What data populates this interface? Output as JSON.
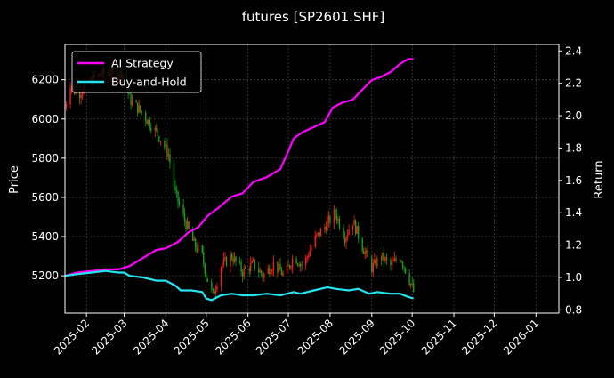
{
  "chart_data": {
    "type": "line",
    "title": "futures [SP2601.SHF]",
    "ylabel_left": "Price",
    "ylabel_right": "Return",
    "y_left_ticks": [
      5200,
      5400,
      5600,
      5800,
      6000,
      6200
    ],
    "y_left_lim": [
      5010,
      6380
    ],
    "y_right_ticks": [
      0.8,
      1.0,
      1.2,
      1.4,
      1.6,
      1.8,
      2.0,
      2.2,
      2.4
    ],
    "y_right_lim": [
      0.78,
      2.44
    ],
    "x_ticks": [
      "2025-02",
      "2025-03",
      "2025-04",
      "2025-05",
      "2025-06",
      "2025-07",
      "2025-08",
      "2025-09",
      "2025-10",
      "2025-11",
      "2025-12",
      "2026-01"
    ],
    "x_lim": [
      "2025-01-16",
      "2026-01-18"
    ],
    "grid": true,
    "legend_position": "top-left",
    "colors": {
      "ai_strategy": "#ff00ff",
      "buy_and_hold": "#22e5f0",
      "candle_up": "#ff1a1a",
      "candle_down": "#1a9e1a",
      "grid": "#555555"
    },
    "series": [
      {
        "name": "AI Strategy",
        "axis": "right",
        "points": [
          [
            "2025-01-16",
            1.01
          ],
          [
            "2025-01-25",
            1.03
          ],
          [
            "2025-02-05",
            1.04
          ],
          [
            "2025-02-15",
            1.05
          ],
          [
            "2025-02-25",
            1.05
          ],
          [
            "2025-03-05",
            1.07
          ],
          [
            "2025-03-15",
            1.12
          ],
          [
            "2025-03-25",
            1.17
          ],
          [
            "2025-04-01",
            1.18
          ],
          [
            "2025-04-10",
            1.22
          ],
          [
            "2025-04-18",
            1.28
          ],
          [
            "2025-04-25",
            1.31
          ],
          [
            "2025-05-02",
            1.38
          ],
          [
            "2025-05-10",
            1.43
          ],
          [
            "2025-05-20",
            1.5
          ],
          [
            "2025-05-28",
            1.52
          ],
          [
            "2025-06-05",
            1.59
          ],
          [
            "2025-06-15",
            1.62
          ],
          [
            "2025-06-25",
            1.67
          ],
          [
            "2025-07-01",
            1.78
          ],
          [
            "2025-07-05",
            1.86
          ],
          [
            "2025-07-12",
            1.9
          ],
          [
            "2025-07-20",
            1.93
          ],
          [
            "2025-07-28",
            1.96
          ],
          [
            "2025-08-03",
            2.05
          ],
          [
            "2025-08-10",
            2.08
          ],
          [
            "2025-08-18",
            2.1
          ],
          [
            "2025-08-25",
            2.16
          ],
          [
            "2025-09-01",
            2.22
          ],
          [
            "2025-09-08",
            2.24
          ],
          [
            "2025-09-15",
            2.27
          ],
          [
            "2025-09-22",
            2.32
          ],
          [
            "2025-09-28",
            2.35
          ],
          [
            "2025-10-02",
            2.35
          ]
        ]
      },
      {
        "name": "Buy-and-Hold",
        "axis": "right",
        "points": [
          [
            "2025-01-16",
            1.01
          ],
          [
            "2025-01-25",
            1.02
          ],
          [
            "2025-02-05",
            1.03
          ],
          [
            "2025-02-15",
            1.04
          ],
          [
            "2025-02-25",
            1.03
          ],
          [
            "2025-03-01",
            1.03
          ],
          [
            "2025-03-05",
            1.01
          ],
          [
            "2025-03-15",
            1.0
          ],
          [
            "2025-03-25",
            0.98
          ],
          [
            "2025-04-01",
            0.98
          ],
          [
            "2025-04-08",
            0.95
          ],
          [
            "2025-04-12",
            0.92
          ],
          [
            "2025-04-20",
            0.92
          ],
          [
            "2025-04-28",
            0.91
          ],
          [
            "2025-05-01",
            0.87
          ],
          [
            "2025-05-05",
            0.86
          ],
          [
            "2025-05-12",
            0.89
          ],
          [
            "2025-05-20",
            0.9
          ],
          [
            "2025-05-28",
            0.89
          ],
          [
            "2025-06-05",
            0.89
          ],
          [
            "2025-06-15",
            0.9
          ],
          [
            "2025-06-25",
            0.89
          ],
          [
            "2025-07-05",
            0.91
          ],
          [
            "2025-07-10",
            0.9
          ],
          [
            "2025-07-20",
            0.92
          ],
          [
            "2025-07-30",
            0.94
          ],
          [
            "2025-08-05",
            0.93
          ],
          [
            "2025-08-15",
            0.92
          ],
          [
            "2025-08-22",
            0.93
          ],
          [
            "2025-08-30",
            0.9
          ],
          [
            "2025-09-05",
            0.91
          ],
          [
            "2025-09-15",
            0.9
          ],
          [
            "2025-09-22",
            0.9
          ],
          [
            "2025-09-28",
            0.88
          ],
          [
            "2025-10-02",
            0.87
          ]
        ]
      },
      {
        "name": "SP2601.SHF price",
        "axis": "left",
        "kind": "candlestick",
        "close_points": [
          [
            "2025-01-16",
            6060
          ],
          [
            "2025-01-20",
            6180
          ],
          [
            "2025-01-25",
            6120
          ],
          [
            "2025-02-05",
            6200
          ],
          [
            "2025-02-15",
            6240
          ],
          [
            "2025-03-01",
            6230
          ],
          [
            "2025-03-05",
            6100
          ],
          [
            "2025-03-12",
            6050
          ],
          [
            "2025-03-20",
            5980
          ],
          [
            "2025-03-28",
            5900
          ],
          [
            "2025-04-03",
            5820
          ],
          [
            "2025-04-08",
            5620
          ],
          [
            "2025-04-14",
            5500
          ],
          [
            "2025-04-22",
            5360
          ],
          [
            "2025-04-28",
            5300
          ],
          [
            "2025-05-01",
            5200
          ],
          [
            "2025-05-06",
            5100
          ],
          [
            "2025-05-12",
            5250
          ],
          [
            "2025-05-20",
            5300
          ],
          [
            "2025-05-28",
            5220
          ],
          [
            "2025-06-05",
            5260
          ],
          [
            "2025-06-12",
            5200
          ],
          [
            "2025-06-20",
            5260
          ],
          [
            "2025-06-28",
            5200
          ],
          [
            "2025-07-05",
            5300
          ],
          [
            "2025-07-12",
            5250
          ],
          [
            "2025-07-20",
            5380
          ],
          [
            "2025-07-28",
            5450
          ],
          [
            "2025-08-05",
            5520
          ],
          [
            "2025-08-12",
            5400
          ],
          [
            "2025-08-18",
            5480
          ],
          [
            "2025-08-25",
            5350
          ],
          [
            "2025-09-01",
            5240
          ],
          [
            "2025-09-08",
            5300
          ],
          [
            "2025-09-15",
            5250
          ],
          [
            "2025-09-22",
            5300
          ],
          [
            "2025-09-28",
            5200
          ],
          [
            "2025-10-02",
            5120
          ]
        ]
      }
    ]
  }
}
